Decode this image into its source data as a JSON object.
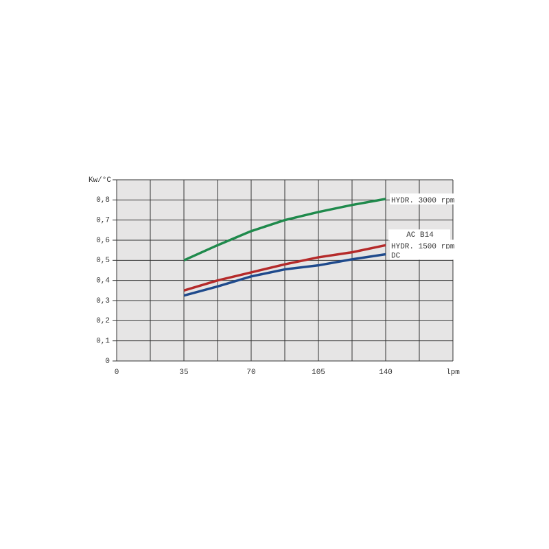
{
  "chart_data": {
    "type": "line",
    "y_label": "Kw/°C",
    "x_label": "lpm",
    "x": [
      35,
      52.5,
      70,
      87.5,
      105,
      122.5,
      140
    ],
    "series": [
      {
        "name": "HYDR. 3000 rpm",
        "color": "#1f8a4c",
        "values": [
          0.5,
          0.575,
          0.645,
          0.7,
          0.74,
          0.775,
          0.805
        ]
      },
      {
        "name": "HYDR. 1500 rpm",
        "color": "#b52a2a",
        "values": [
          0.35,
          0.4,
          0.44,
          0.48,
          0.515,
          0.54,
          0.575
        ]
      },
      {
        "name": "DC",
        "color": "#1f4a8c",
        "values": [
          0.325,
          0.37,
          0.42,
          0.455,
          0.475,
          0.505,
          0.53
        ]
      }
    ],
    "annotation": "AC B14",
    "xlim": [
      0,
      175
    ],
    "ylim": [
      0,
      0.9
    ],
    "xticks": [
      0,
      35,
      70,
      105,
      140
    ],
    "xgrid": [
      0,
      17.5,
      35,
      52.5,
      70,
      87.5,
      105,
      122.5,
      140,
      157.5,
      175
    ],
    "yticks": [
      0,
      {
        "value": 0.1,
        "label": "0,1"
      },
      {
        "value": 0.2,
        "label": "0,2"
      },
      {
        "value": 0.3,
        "label": "0,3"
      },
      {
        "value": 0.4,
        "label": "0,4"
      },
      {
        "value": 0.5,
        "label": "0,5"
      },
      {
        "value": 0.6,
        "label": "0,6"
      },
      {
        "value": 0.7,
        "label": "0,7"
      },
      {
        "value": 0.8,
        "label": "0,8"
      },
      {
        "value": 0.9,
        "label": ""
      }
    ],
    "grid": true,
    "background": "#e6e5e5"
  }
}
